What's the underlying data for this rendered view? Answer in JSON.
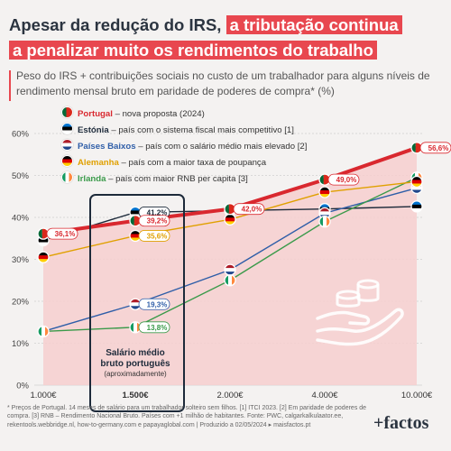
{
  "title": {
    "line1_plain": "Apesar da redução do IRS,",
    "line1_highlight": "a tributação continua",
    "line2_highlight": "a penalizar muito os rendimentos do trabalho"
  },
  "subtitle": "Peso do IRS + contribuições sociais no custo de um trabalhador para alguns níveis de rendimento mensal bruto em paridade de poderes de compra* (%)",
  "legend": [
    {
      "country": "Portugal",
      "desc": " – nova proposta (2024)",
      "color": "#d9282f"
    },
    {
      "country": "Estónia",
      "desc": " – país com o sistema fiscal mais competitivo [1]",
      "color": "#1d2a3a"
    },
    {
      "country": "Países Baixos",
      "desc": " – país com o salário médio mais elevado [2]",
      "color": "#2f5ea8"
    },
    {
      "country": "Alemanha",
      "desc": " – país com a maior taxa de poupança",
      "color": "#e0a000"
    },
    {
      "country": "Irlanda",
      "desc": " – país com maior RNB per capita [3]",
      "color": "#3a9a4a"
    }
  ],
  "colors": {
    "highlight": "#e8474f",
    "background": "#f4f2f1",
    "area": "#f6cfcf"
  },
  "highlight_box": {
    "line1": "Salário médio",
    "line2": "bruto português",
    "line3": "(aproximadamente)"
  },
  "footnote": "* Preços de Portugal. 14 meses de salário para um trabalhador solteiro sem filhos. [1] ITCI 2023. [2] Em paridade de poderes de compra. [3] RNB – Rendimento Nacional Bruto. Países com +1 milhão de habitantes. Fonte: PWC, calgarkalkulaator.ee, rekentools.webbridge.nl, how-to-germany.com e papayaglobal.com | Produzido a 02/05/2024 ▸ maisfactos.pt",
  "brand": "+factos",
  "chart_data": {
    "type": "line",
    "x": [
      "1.000€",
      "1.500€",
      "2.000€",
      "4.000€",
      "10.000€"
    ],
    "ylim": [
      0,
      60
    ],
    "yticks": [
      "0%",
      "10%",
      "20%",
      "30%",
      "40%",
      "50%",
      "60%"
    ],
    "yticks_values": [
      0,
      10,
      20,
      30,
      40,
      50,
      60
    ],
    "series": [
      {
        "name": "Portugal",
        "color": "#d9282f",
        "values": [
          36.1,
          39.2,
          42.0,
          49.0,
          56.6
        ],
        "labels": [
          "36,1%",
          "39,2%",
          "42,0%",
          "49,0%",
          "56,6%"
        ]
      },
      {
        "name": "Estónia",
        "color": "#1d2a3a",
        "values": [
          34.5,
          41.2,
          41.6,
          42.0,
          42.6
        ],
        "labels": [
          "",
          "41,2%",
          "",
          "",
          ""
        ]
      },
      {
        "name": "Países Baixos",
        "color": "#2f5ea8",
        "values": [
          12.8,
          19.3,
          27.5,
          41.0,
          47.0
        ],
        "labels": [
          "",
          "19,3%",
          "",
          "",
          ""
        ]
      },
      {
        "name": "Alemanha",
        "color": "#e0a000",
        "values": [
          30.5,
          35.6,
          39.5,
          46.0,
          48.5
        ],
        "labels": [
          "",
          "35,6%",
          "",
          "",
          ""
        ]
      },
      {
        "name": "Irlanda",
        "color": "#3a9a4a",
        "values": [
          12.8,
          13.8,
          25.0,
          39.0,
          49.5
        ],
        "labels": [
          "",
          "13,8%",
          "",
          "",
          ""
        ]
      }
    ]
  }
}
